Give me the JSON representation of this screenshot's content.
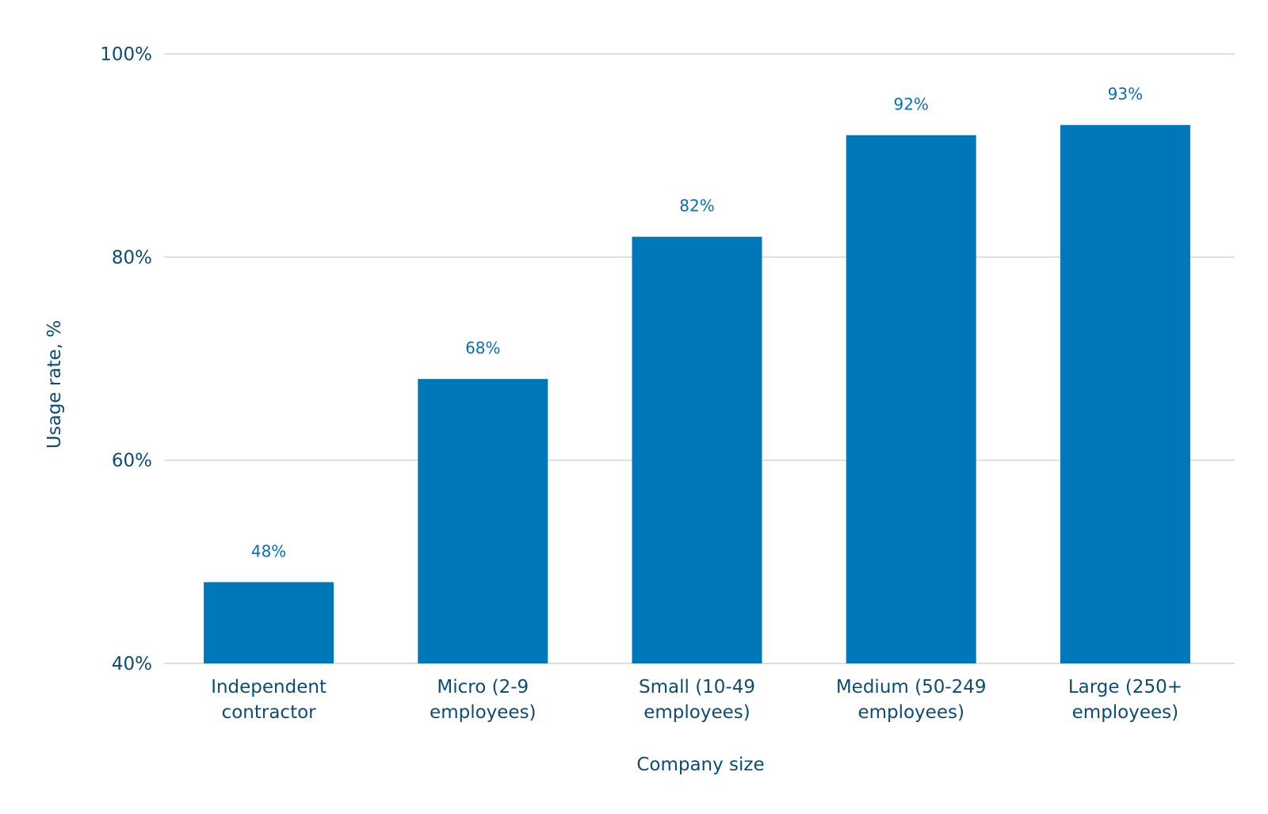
{
  "chart_data": {
    "type": "bar",
    "title": "",
    "categories": [
      [
        "Independent",
        "contractor"
      ],
      [
        "Micro (2-9",
        "employees)"
      ],
      [
        "Small (10-49",
        "employees)"
      ],
      [
        "Medium (50-249",
        "employees)"
      ],
      [
        "Large (250+",
        "employees)"
      ]
    ],
    "values": [
      48,
      68,
      82,
      92,
      93
    ],
    "value_labels": [
      "48%",
      "68%",
      "82%",
      "92%",
      "93%"
    ],
    "xlabel": "Company size",
    "ylabel": "Usage rate, %",
    "ylim": [
      40,
      100
    ],
    "yticks": [
      40,
      60,
      80,
      100
    ],
    "ytick_labels": [
      "40%",
      "60%",
      "80%",
      "100%"
    ],
    "grid": true,
    "bar_color": "#0077b6",
    "text_color": "#0f4b6e",
    "label_color": "#0a6fa8"
  }
}
